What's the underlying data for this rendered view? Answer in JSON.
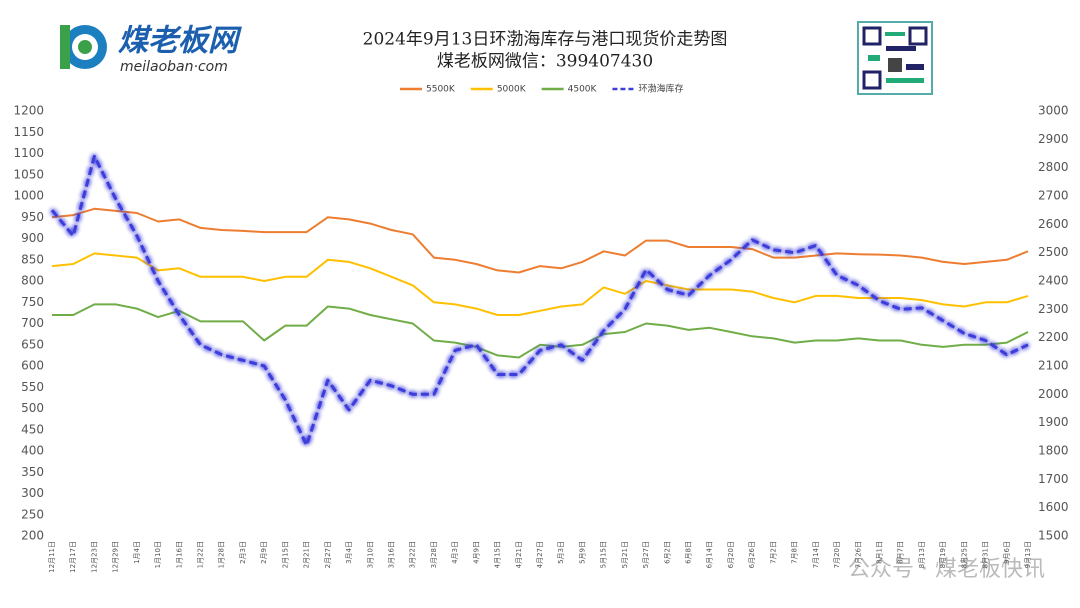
{
  "logo": {
    "name": "煤老板网",
    "url": "meilaoban·com"
  },
  "watermark": "公众号 · 煤老板快讯",
  "chart_data": {
    "type": "line",
    "title": "2024年9月13日环渤海库存与港口现货价走势图",
    "subtitle": "煤老板网微信：399407430",
    "legend": "top",
    "grid": false,
    "categories": [
      "12月11日",
      "12月17日",
      "12月23日",
      "12月29日",
      "1月4日",
      "1月10日",
      "1月16日",
      "1月22日",
      "1月28日",
      "2月3日",
      "2月9日",
      "2月15日",
      "2月21日",
      "2月27日",
      "3月4日",
      "3月10日",
      "3月16日",
      "3月22日",
      "3月28日",
      "4月3日",
      "4月9日",
      "4月15日",
      "4月21日",
      "4月27日",
      "5月3日",
      "5月9日",
      "5月15日",
      "5月21日",
      "5月27日",
      "6月2日",
      "6月8日",
      "6月14日",
      "6月20日",
      "6月26日",
      "7月2日",
      "7月8日",
      "7月14日",
      "7月20日",
      "7月26日",
      "8月1日",
      "8月7日",
      "8月13日",
      "8月19日",
      "8月25日",
      "8月31日",
      "9月6日",
      "9月13日"
    ],
    "series": [
      {
        "name": "5500K",
        "color": "#ed7d31",
        "values": [
          950,
          955,
          970,
          965,
          960,
          940,
          945,
          925,
          920,
          918,
          915,
          915,
          915,
          950,
          945,
          935,
          920,
          910,
          855,
          850,
          840,
          825,
          820,
          835,
          830,
          845,
          870,
          860,
          895,
          895,
          880,
          880,
          880,
          875,
          855,
          855,
          860,
          865,
          863,
          862,
          860,
          855,
          845,
          840,
          845,
          850,
          870
        ]
      },
      {
        "name": "5000K",
        "color": "#ffc000",
        "values": [
          835,
          840,
          865,
          860,
          855,
          825,
          830,
          810,
          810,
          810,
          800,
          810,
          810,
          850,
          845,
          830,
          810,
          790,
          750,
          745,
          735,
          720,
          720,
          730,
          740,
          745,
          785,
          770,
          800,
          790,
          780,
          780,
          780,
          775,
          760,
          750,
          765,
          765,
          760,
          760,
          760,
          755,
          745,
          740,
          750,
          750,
          765
        ]
      },
      {
        "name": "4500K",
        "color": "#70ad47",
        "values": [
          720,
          720,
          745,
          745,
          735,
          715,
          730,
          705,
          705,
          705,
          660,
          695,
          695,
          740,
          735,
          720,
          710,
          700,
          660,
          655,
          645,
          625,
          620,
          650,
          645,
          650,
          675,
          680,
          700,
          695,
          685,
          690,
          680,
          670,
          665,
          655,
          660,
          660,
          665,
          660,
          660,
          650,
          645,
          650,
          650,
          655,
          680
        ]
      },
      {
        "name": "环渤海库存",
        "color": "#3d3ddb",
        "axis": "y2",
        "dashed": true,
        "values": [
          2650,
          2560,
          2840,
          2690,
          2560,
          2400,
          2280,
          2175,
          2140,
          2120,
          2100,
          1980,
          1820,
          2050,
          1945,
          2050,
          2030,
          2000,
          2000,
          2155,
          2175,
          2070,
          2070,
          2155,
          2175,
          2120,
          2225,
          2300,
          2440,
          2370,
          2350,
          2420,
          2475,
          2545,
          2510,
          2500,
          2525,
          2420,
          2385,
          2330,
          2300,
          2305,
          2260,
          2215,
          2190,
          2140,
          2175
        ]
      }
    ],
    "ylim": [
      200,
      1200
    ],
    "yticks": [
      200,
      250,
      300,
      350,
      400,
      450,
      500,
      550,
      600,
      650,
      700,
      750,
      800,
      850,
      900,
      950,
      1000,
      1050,
      1100,
      1150,
      1200
    ],
    "y2lim": [
      1500,
      3000
    ],
    "y2ticks": [
      1500,
      1600,
      1700,
      1800,
      1900,
      2000,
      2100,
      2200,
      2300,
      2400,
      2500,
      2600,
      2700,
      2800,
      2900,
      3000
    ]
  }
}
